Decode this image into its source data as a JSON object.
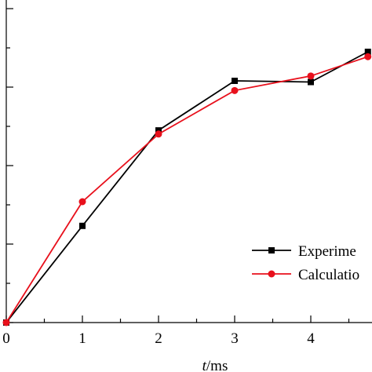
{
  "chart_data": {
    "type": "line",
    "xlabel": {
      "italic": "t",
      "rest": "/ms"
    },
    "xlim": [
      0,
      4.75
    ],
    "ylim": [
      0,
      1
    ],
    "x_ticks": [
      0,
      1,
      2,
      3,
      4
    ],
    "x_tick_labels": [
      "0",
      "1",
      "2",
      "3",
      "4"
    ],
    "grid": false,
    "legend_position": "bottom-right",
    "series": [
      {
        "name": "Experime",
        "color": "#000000",
        "marker": "square",
        "x": [
          0,
          1,
          2,
          3,
          4,
          4.75
        ],
        "y": [
          0,
          0.4,
          0.795,
          1.0,
          0.995,
          1.12
        ]
      },
      {
        "name": "Calculatio",
        "color": "#e8101c",
        "marker": "circle",
        "x": [
          0,
          1,
          2,
          3,
          4,
          4.75
        ],
        "y": [
          0,
          0.5,
          0.78,
          0.96,
          1.02,
          1.1
        ]
      }
    ]
  }
}
